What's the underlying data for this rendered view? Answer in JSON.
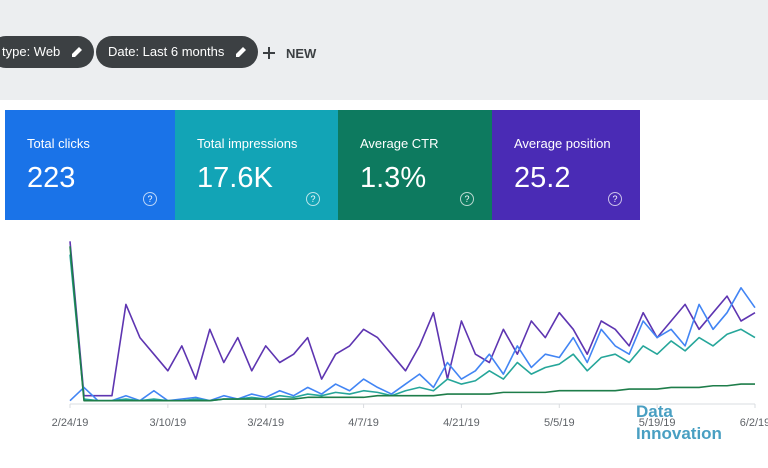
{
  "toolbar": {
    "filters": [
      "type: Web",
      "Date: Last 6 months"
    ],
    "new_button": "NEW"
  },
  "metrics": [
    {
      "label": "Total clicks",
      "value": "223",
      "help": "?",
      "color": "#1a73e8"
    },
    {
      "label": "Total impressions",
      "value": "17.6K",
      "help": "?",
      "color": "#12a4b6"
    },
    {
      "label": "Average CTR",
      "value": "1.3%",
      "help": "?",
      "color": "#0d7a5f"
    },
    {
      "label": "Average position",
      "value": "25.2",
      "help": "?",
      "color": "#4a2bb5"
    }
  ],
  "chart_data": {
    "type": "line",
    "xlim": [
      0,
      49
    ],
    "ylim": [
      0,
      100
    ],
    "xticks": [
      {
        "value": 0,
        "label": "2/24/19"
      },
      {
        "value": 7,
        "label": "3/10/19"
      },
      {
        "value": 14,
        "label": "3/24/19"
      },
      {
        "value": 21,
        "label": "4/7/19"
      },
      {
        "value": 28,
        "label": "4/21/19"
      },
      {
        "value": 35,
        "label": "5/5/19"
      },
      {
        "value": 42,
        "label": "5/19/19"
      },
      {
        "value": 49,
        "label": "6/2/19"
      }
    ],
    "series": [
      {
        "color": "#5e35b1",
        "values": [
          98,
          5,
          5,
          5,
          60,
          40,
          30,
          20,
          35,
          15,
          45,
          25,
          40,
          20,
          35,
          25,
          30,
          40,
          15,
          30,
          35,
          45,
          40,
          30,
          20,
          35,
          55,
          15,
          50,
          30,
          25,
          45,
          30,
          50,
          40,
          55,
          45,
          30,
          50,
          45,
          35,
          55,
          40,
          50,
          60,
          45,
          55,
          65,
          50,
          55
        ]
      },
      {
        "color": "#4285f4",
        "values": [
          2,
          10,
          2,
          2,
          5,
          2,
          8,
          2,
          3,
          4,
          2,
          5,
          3,
          6,
          4,
          8,
          5,
          10,
          6,
          12,
          8,
          15,
          10,
          6,
          12,
          18,
          10,
          25,
          15,
          20,
          30,
          18,
          35,
          22,
          30,
          28,
          40,
          25,
          45,
          35,
          30,
          50,
          40,
          45,
          35,
          60,
          45,
          55,
          70,
          58
        ]
      },
      {
        "color": "#26a69a",
        "values": [
          90,
          3,
          2,
          2,
          3,
          2,
          3,
          2,
          2,
          3,
          2,
          3,
          3,
          4,
          3,
          5,
          4,
          6,
          5,
          7,
          6,
          8,
          7,
          5,
          8,
          10,
          8,
          15,
          12,
          14,
          20,
          15,
          25,
          18,
          22,
          24,
          30,
          20,
          28,
          30,
          25,
          35,
          30,
          38,
          32,
          40,
          35,
          42,
          45,
          40
        ]
      },
      {
        "color": "#1e7d4a",
        "values": [
          95,
          2,
          2,
          2,
          2,
          2,
          2,
          2,
          2,
          2,
          2,
          3,
          3,
          3,
          3,
          3,
          3,
          4,
          4,
          4,
          4,
          4,
          5,
          5,
          5,
          5,
          5,
          6,
          6,
          6,
          6,
          7,
          7,
          7,
          7,
          8,
          8,
          8,
          8,
          8,
          9,
          9,
          9,
          10,
          10,
          10,
          11,
          11,
          12,
          12
        ]
      }
    ]
  },
  "watermark": [
    "Data",
    "Innovation"
  ]
}
